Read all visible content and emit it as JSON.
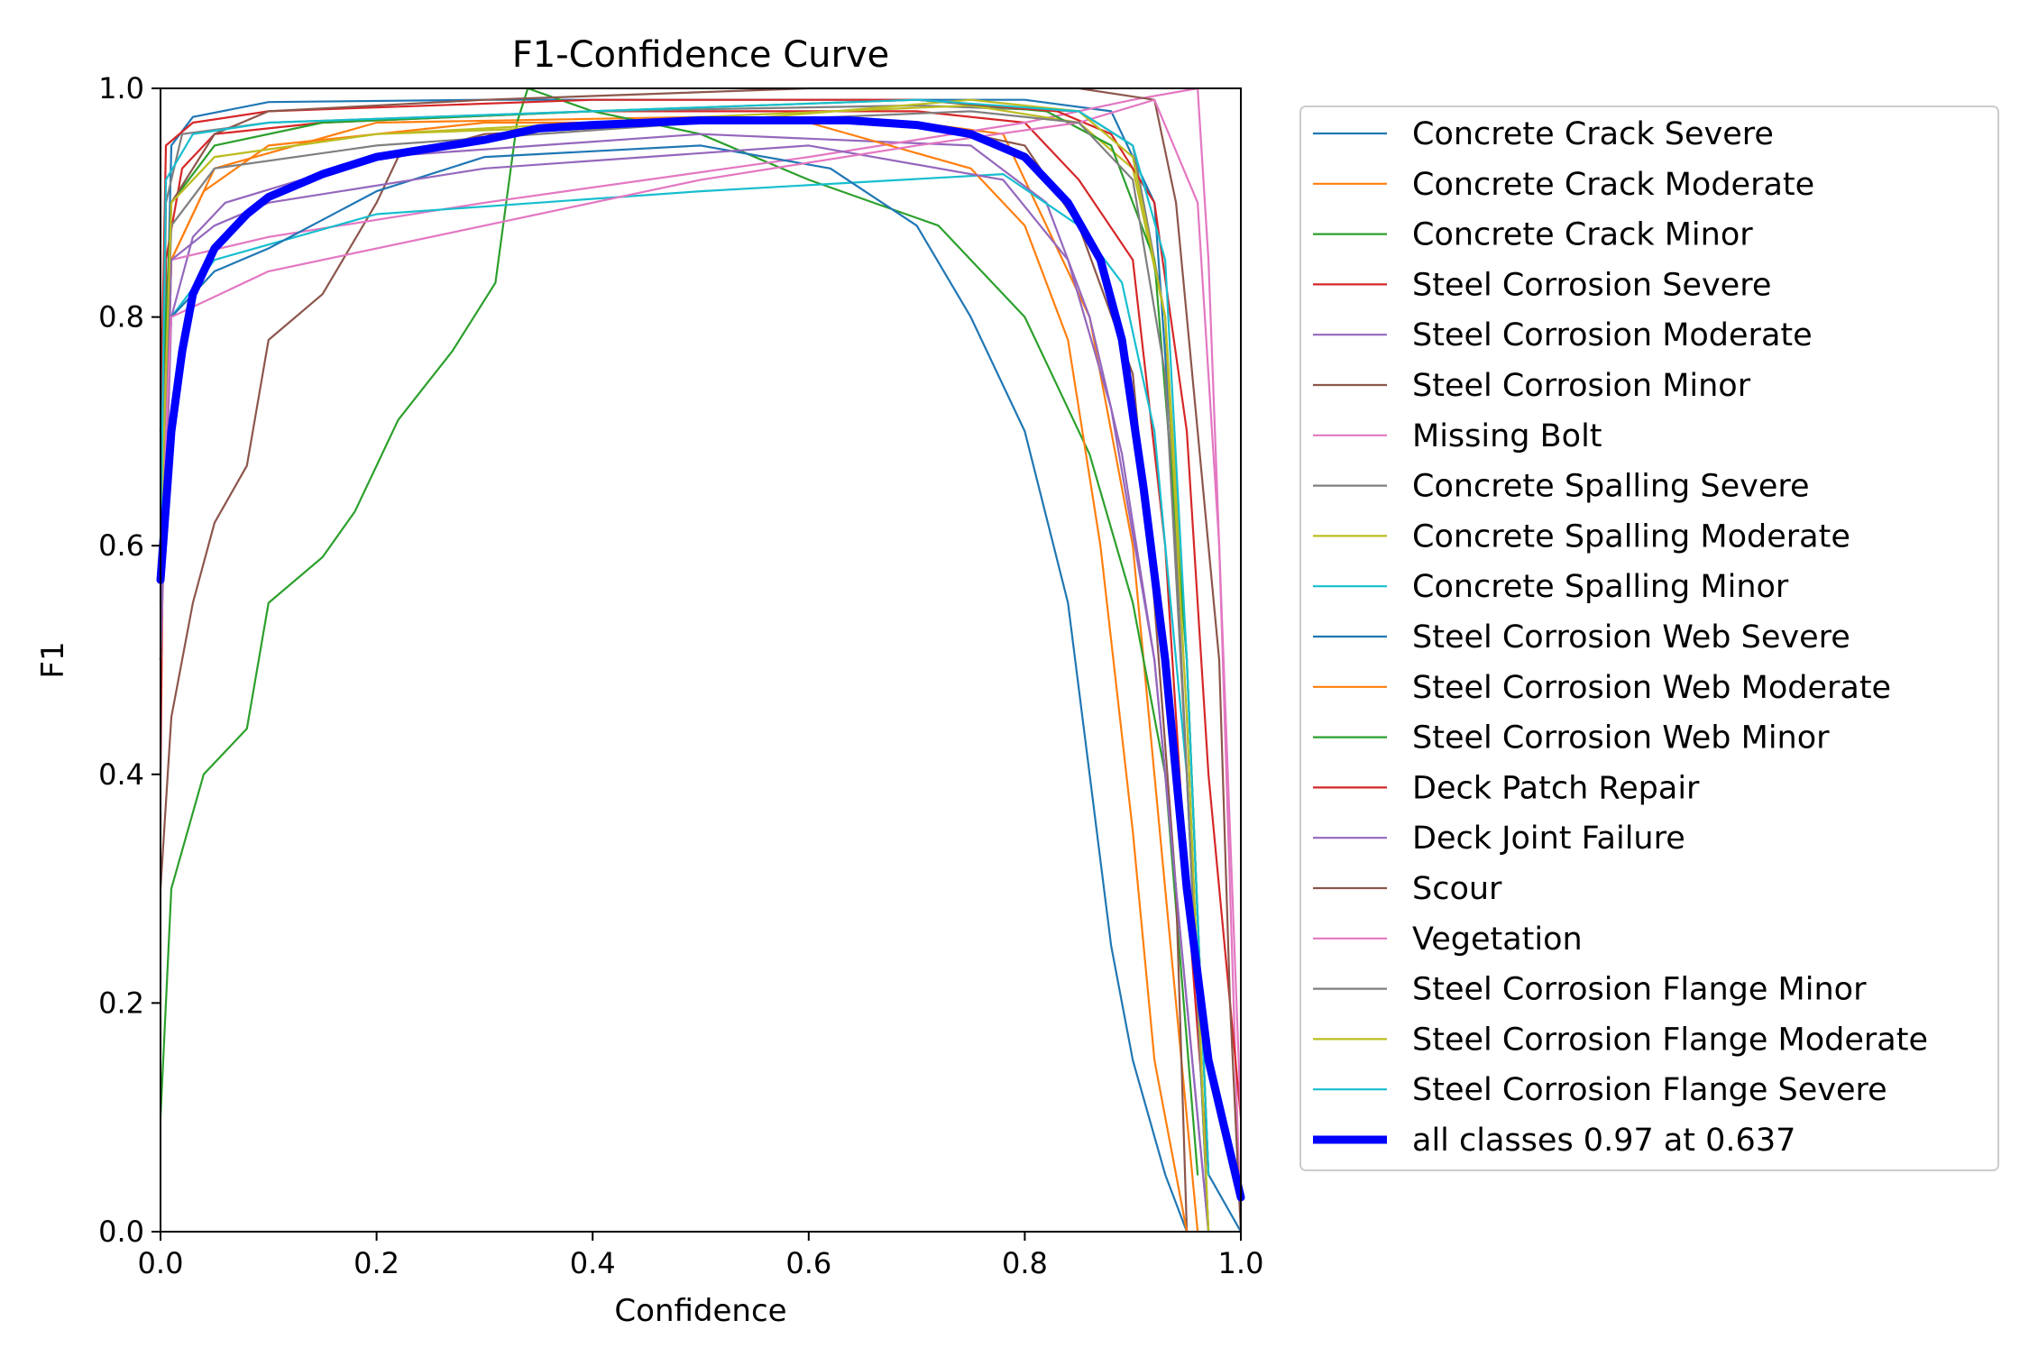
{
  "chart_data": {
    "type": "line",
    "title": "F1-Confidence Curve",
    "xlabel": "Confidence",
    "ylabel": "F1",
    "xlim": [
      0,
      1
    ],
    "ylim": [
      0,
      1
    ],
    "grid": false,
    "legend_position": "outside-right",
    "x_ticks": [
      "0.0",
      "0.2",
      "0.4",
      "0.6",
      "0.8",
      "1.0"
    ],
    "y_ticks": [
      "0.0",
      "0.2",
      "0.4",
      "0.6",
      "0.8",
      "1.0"
    ],
    "series": [
      {
        "name": "Concrete Crack Severe",
        "color": "#1f77b4",
        "x": [
          0,
          0.01,
          0.03,
          0.1,
          0.3,
          0.6,
          0.8,
          0.88,
          0.92,
          0.95,
          0.97,
          1.0
        ],
        "y": [
          0.55,
          0.95,
          0.975,
          0.988,
          0.99,
          0.99,
          0.99,
          0.98,
          0.9,
          0.5,
          0.05,
          0.0
        ]
      },
      {
        "name": "Concrete Crack Moderate",
        "color": "#ff7f0e",
        "x": [
          0,
          0.01,
          0.05,
          0.2,
          0.5,
          0.7,
          0.78,
          0.82,
          0.86,
          0.9,
          0.93,
          0.96
        ],
        "y": [
          0.6,
          0.85,
          0.93,
          0.97,
          0.975,
          0.97,
          0.96,
          0.88,
          0.8,
          0.6,
          0.3,
          0.0
        ]
      },
      {
        "name": "Concrete Crack Minor",
        "color": "#2ca02c",
        "x": [
          0,
          0.01,
          0.04,
          0.08,
          0.1,
          0.15,
          0.18,
          0.22,
          0.27,
          0.31,
          0.33,
          0.34,
          0.4,
          0.5,
          0.6,
          0.72,
          0.8,
          0.86,
          0.9,
          0.93,
          0.96
        ],
        "y": [
          0.1,
          0.3,
          0.4,
          0.44,
          0.55,
          0.59,
          0.63,
          0.71,
          0.77,
          0.83,
          0.97,
          1.0,
          0.98,
          0.96,
          0.92,
          0.88,
          0.8,
          0.68,
          0.55,
          0.4,
          0.05
        ]
      },
      {
        "name": "Steel Corrosion Severe",
        "color": "#d62728",
        "x": [
          0,
          0.005,
          0.02,
          0.05,
          0.15,
          0.4,
          0.7,
          0.8,
          0.85,
          0.9,
          0.93,
          0.95,
          0.97
        ],
        "y": [
          0.4,
          0.85,
          0.93,
          0.96,
          0.97,
          0.98,
          0.98,
          0.97,
          0.92,
          0.85,
          0.6,
          0.3,
          0.05
        ]
      },
      {
        "name": "Steel Corrosion Moderate",
        "color": "#9467bd",
        "x": [
          0,
          0.01,
          0.03,
          0.06,
          0.2,
          0.5,
          0.75,
          0.82,
          0.86,
          0.89,
          0.92,
          0.95,
          0.97
        ],
        "y": [
          0.5,
          0.8,
          0.87,
          0.9,
          0.94,
          0.96,
          0.95,
          0.9,
          0.8,
          0.68,
          0.5,
          0.2,
          0.0
        ]
      },
      {
        "name": "Steel Corrosion Minor",
        "color": "#8c564b",
        "x": [
          0,
          0.01,
          0.03,
          0.05,
          0.08,
          0.1,
          0.15,
          0.2,
          0.22,
          0.3,
          0.5,
          0.7,
          0.8,
          0.85,
          0.9,
          0.92,
          0.94,
          0.95
        ],
        "y": [
          0.3,
          0.45,
          0.55,
          0.62,
          0.67,
          0.78,
          0.82,
          0.9,
          0.94,
          0.96,
          0.97,
          0.97,
          0.95,
          0.88,
          0.75,
          0.55,
          0.3,
          0.0
        ]
      },
      {
        "name": "Missing Bolt",
        "color": "#e377c2",
        "x": [
          0,
          0.01,
          0.1,
          0.3,
          0.6,
          0.8,
          0.9,
          0.96,
          0.97,
          0.98,
          0.99,
          1.0
        ],
        "y": [
          0.5,
          0.85,
          0.87,
          0.9,
          0.94,
          0.97,
          0.99,
          1.0,
          0.85,
          0.6,
          0.3,
          0.0
        ]
      },
      {
        "name": "Concrete Spalling Severe",
        "color": "#7f7f7f",
        "x": [
          0,
          0.005,
          0.02,
          0.1,
          0.4,
          0.7,
          0.85,
          0.9,
          0.93,
          0.95,
          0.97
        ],
        "y": [
          0.5,
          0.9,
          0.96,
          0.97,
          0.98,
          0.985,
          0.98,
          0.95,
          0.8,
          0.4,
          0.0
        ]
      },
      {
        "name": "Concrete Spalling Moderate",
        "color": "#bcbd22",
        "x": [
          0,
          0.01,
          0.05,
          0.2,
          0.5,
          0.75,
          0.85,
          0.9,
          0.93,
          0.95,
          0.97
        ],
        "y": [
          0.6,
          0.9,
          0.94,
          0.96,
          0.975,
          0.985,
          0.97,
          0.93,
          0.8,
          0.5,
          0.05
        ]
      },
      {
        "name": "Concrete Spalling Minor",
        "color": "#17becf",
        "x": [
          0,
          0.01,
          0.05,
          0.2,
          0.5,
          0.78,
          0.85,
          0.89,
          0.92,
          0.95,
          0.97
        ],
        "y": [
          0.6,
          0.8,
          0.85,
          0.89,
          0.91,
          0.925,
          0.88,
          0.83,
          0.7,
          0.4,
          0.0
        ]
      },
      {
        "name": "Steel Corrosion Web Severe",
        "color": "#1f77b4",
        "x": [
          0,
          0.01,
          0.05,
          0.1,
          0.2,
          0.3,
          0.5,
          0.62,
          0.7,
          0.75,
          0.8,
          0.84,
          0.86,
          0.88,
          0.9,
          0.93,
          0.95
        ],
        "y": [
          0.6,
          0.8,
          0.84,
          0.86,
          0.91,
          0.94,
          0.95,
          0.93,
          0.88,
          0.8,
          0.7,
          0.55,
          0.4,
          0.25,
          0.15,
          0.05,
          0.0
        ]
      },
      {
        "name": "Steel Corrosion Web Moderate",
        "color": "#ff7f0e",
        "x": [
          0,
          0.01,
          0.04,
          0.1,
          0.3,
          0.6,
          0.75,
          0.8,
          0.84,
          0.87,
          0.9,
          0.92,
          0.95
        ],
        "y": [
          0.5,
          0.85,
          0.91,
          0.95,
          0.97,
          0.97,
          0.93,
          0.88,
          0.78,
          0.6,
          0.35,
          0.15,
          0.0
        ]
      },
      {
        "name": "Steel Corrosion Web Minor",
        "color": "#2ca02c",
        "x": [
          0,
          0.01,
          0.05,
          0.15,
          0.4,
          0.7,
          0.82,
          0.88,
          0.92,
          0.95,
          0.97
        ],
        "y": [
          0.7,
          0.9,
          0.95,
          0.97,
          0.98,
          0.99,
          0.98,
          0.95,
          0.85,
          0.5,
          0.05
        ]
      },
      {
        "name": "Deck Patch Repair",
        "color": "#d62728",
        "x": [
          0,
          0.005,
          0.03,
          0.1,
          0.4,
          0.7,
          0.83,
          0.88,
          0.92,
          0.95,
          0.97,
          0.99,
          1.0
        ],
        "y": [
          0.7,
          0.95,
          0.97,
          0.98,
          0.99,
          0.99,
          0.98,
          0.96,
          0.9,
          0.7,
          0.4,
          0.2,
          0.1
        ]
      },
      {
        "name": "Deck Joint Failure",
        "color": "#9467bd",
        "x": [
          0,
          0.01,
          0.05,
          0.1,
          0.3,
          0.6,
          0.78,
          0.84,
          0.88,
          0.92,
          0.95,
          0.97
        ],
        "y": [
          0.5,
          0.85,
          0.88,
          0.9,
          0.93,
          0.95,
          0.92,
          0.85,
          0.72,
          0.5,
          0.2,
          0.0
        ]
      },
      {
        "name": "Scour",
        "color": "#8c564b",
        "x": [
          0,
          0.01,
          0.05,
          0.1,
          0.3,
          0.6,
          0.85,
          0.92,
          0.94,
          0.96,
          0.98,
          0.99,
          1.0
        ],
        "y": [
          0.6,
          0.9,
          0.96,
          0.98,
          0.99,
          1.0,
          1.0,
          0.99,
          0.9,
          0.7,
          0.5,
          0.2,
          0.0
        ]
      },
      {
        "name": "Vegetation",
        "color": "#e377c2",
        "x": [
          0,
          0.01,
          0.1,
          0.3,
          0.5,
          0.7,
          0.85,
          0.92,
          0.96,
          0.98,
          1.0
        ],
        "y": [
          0.6,
          0.8,
          0.84,
          0.88,
          0.92,
          0.95,
          0.97,
          0.99,
          0.9,
          0.6,
          0.1
        ]
      },
      {
        "name": "Steel Corrosion Flange Minor",
        "color": "#7f7f7f",
        "x": [
          0,
          0.01,
          0.05,
          0.2,
          0.5,
          0.75,
          0.85,
          0.9,
          0.93,
          0.95,
          0.97
        ],
        "y": [
          0.6,
          0.88,
          0.93,
          0.95,
          0.97,
          0.98,
          0.97,
          0.92,
          0.75,
          0.4,
          0.0
        ]
      },
      {
        "name": "Steel Corrosion Flange Moderate",
        "color": "#bcbd22",
        "x": [
          0,
          0.01,
          0.05,
          0.2,
          0.5,
          0.75,
          0.85,
          0.9,
          0.93,
          0.95,
          0.97
        ],
        "y": [
          0.6,
          0.9,
          0.94,
          0.96,
          0.97,
          0.99,
          0.98,
          0.94,
          0.8,
          0.45,
          0.0
        ]
      },
      {
        "name": "Steel Corrosion Flange Severe",
        "color": "#17becf",
        "x": [
          0,
          0.005,
          0.03,
          0.1,
          0.4,
          0.7,
          0.85,
          0.9,
          0.93,
          0.95,
          0.97
        ],
        "y": [
          0.6,
          0.92,
          0.96,
          0.97,
          0.98,
          0.99,
          0.98,
          0.95,
          0.85,
          0.5,
          0.05
        ]
      },
      {
        "name": "all classes 0.97 at 0.637",
        "color": "#0000ff",
        "bold": true,
        "x": [
          0,
          0.01,
          0.02,
          0.03,
          0.05,
          0.08,
          0.1,
          0.15,
          0.2,
          0.3,
          0.35,
          0.4,
          0.5,
          0.6,
          0.637,
          0.7,
          0.75,
          0.8,
          0.84,
          0.87,
          0.89,
          0.91,
          0.93,
          0.95,
          0.97,
          0.99,
          1.0
        ],
        "y": [
          0.57,
          0.7,
          0.77,
          0.82,
          0.86,
          0.89,
          0.905,
          0.925,
          0.94,
          0.955,
          0.965,
          0.968,
          0.972,
          0.972,
          0.972,
          0.968,
          0.96,
          0.94,
          0.9,
          0.85,
          0.78,
          0.65,
          0.5,
          0.3,
          0.15,
          0.07,
          0.03
        ]
      }
    ]
  }
}
